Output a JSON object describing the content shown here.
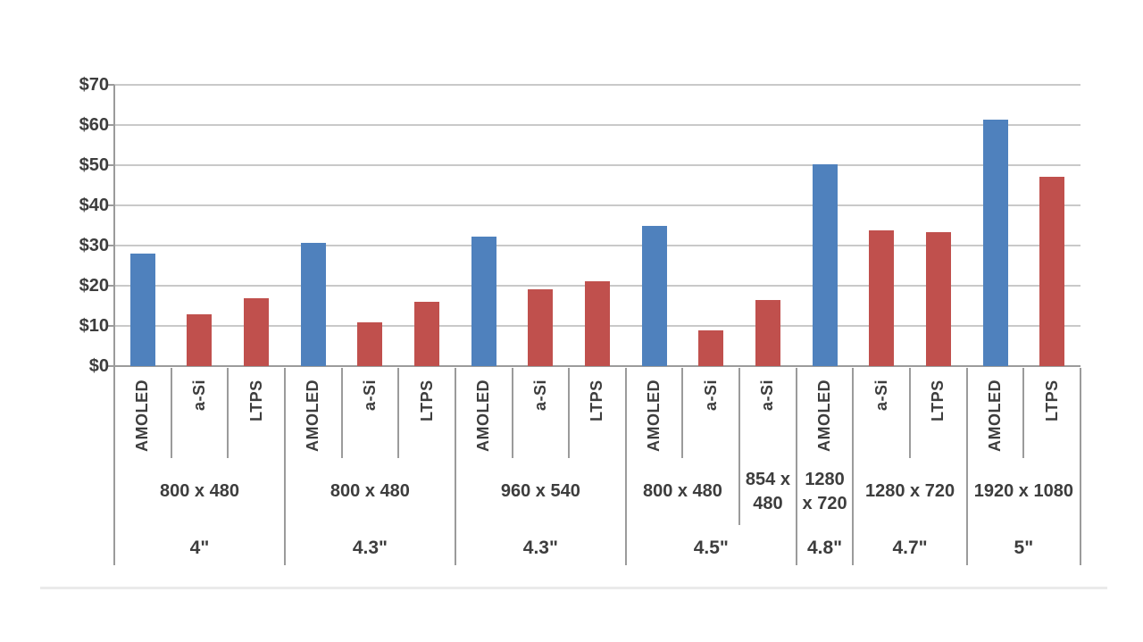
{
  "chart_data": {
    "type": "bar",
    "title": "",
    "legend_position": "none",
    "grid": true,
    "y_axis": {
      "min": 0,
      "max": 70,
      "step": 10,
      "tick_labels": [
        "$0",
        "$10",
        "$20",
        "$30",
        "$40",
        "$50",
        "$60",
        "$70"
      ]
    },
    "bar_colors": {
      "AMOLED": "#4F81BD",
      "a-Si": "#C0504D",
      "LTPS": "#C0504D"
    },
    "category_levels": [
      "technology",
      "resolution",
      "size"
    ],
    "groups": [
      {
        "size": "4\"",
        "resolutions": [
          {
            "resolution": "800 x 480",
            "bars": [
              {
                "tech": "AMOLED",
                "value": 28.0
              },
              {
                "tech": "a-Si",
                "value": 13.0
              },
              {
                "tech": "LTPS",
                "value": 16.8
              }
            ]
          }
        ]
      },
      {
        "size": "4.3\"",
        "resolutions": [
          {
            "resolution": "800 x 480",
            "bars": [
              {
                "tech": "AMOLED",
                "value": 30.6
              },
              {
                "tech": "a-Si",
                "value": 11.0
              },
              {
                "tech": "LTPS",
                "value": 16.0
              }
            ]
          }
        ]
      },
      {
        "size": "4.3\"",
        "resolutions": [
          {
            "resolution": "960 x 540",
            "bars": [
              {
                "tech": "AMOLED",
                "value": 32.3
              },
              {
                "tech": "a-Si",
                "value": 19.2
              },
              {
                "tech": "LTPS",
                "value": 21.2
              }
            ]
          }
        ]
      },
      {
        "size": "4.5\"",
        "resolutions": [
          {
            "resolution": "800 x 480",
            "bars": [
              {
                "tech": "AMOLED",
                "value": 35.0
              },
              {
                "tech": "a-Si",
                "value": 9.0
              }
            ]
          },
          {
            "resolution": "854 x 480",
            "bars": [
              {
                "tech": "a-Si",
                "value": 16.5
              }
            ]
          }
        ]
      },
      {
        "size": "4.8\"",
        "resolutions": [
          {
            "resolution": "1280 x 720",
            "bars": [
              {
                "tech": "AMOLED",
                "value": 50.3
              }
            ]
          }
        ]
      },
      {
        "size": "4.7\"",
        "resolutions": [
          {
            "resolution": "1280 x 720",
            "bars": [
              {
                "tech": "a-Si",
                "value": 33.8
              },
              {
                "tech": "LTPS",
                "value": 33.3
              }
            ]
          }
        ]
      },
      {
        "size": "5\"",
        "resolutions": [
          {
            "resolution": "1920 x 1080",
            "bars": [
              {
                "tech": "AMOLED",
                "value": 61.4
              },
              {
                "tech": "LTPS",
                "value": 47.2
              }
            ]
          }
        ]
      }
    ]
  }
}
